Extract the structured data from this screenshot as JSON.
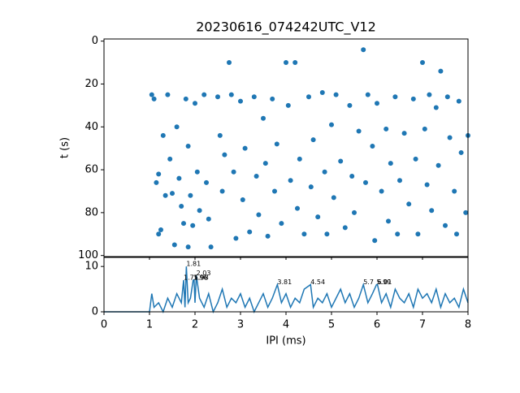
{
  "chart_data": [
    {
      "type": "scatter",
      "title": "20230616_074242UTC_V12",
      "ylabel": "t (s)",
      "color": "#1f77b4",
      "x": [
        1.05,
        1.1,
        1.2,
        1.15,
        1.3,
        1.35,
        1.25,
        1.2,
        1.4,
        1.45,
        1.5,
        1.55,
        1.6,
        1.65,
        1.7,
        1.75,
        1.8,
        1.85,
        1.9,
        1.95,
        2.0,
        2.05,
        2.1,
        1.85,
        2.2,
        2.25,
        2.3,
        2.35,
        2.5,
        2.55,
        2.6,
        2.65,
        2.75,
        2.8,
        2.85,
        2.9,
        3.0,
        3.05,
        3.1,
        3.2,
        3.3,
        3.35,
        3.4,
        3.5,
        3.55,
        3.6,
        3.7,
        3.75,
        3.8,
        3.9,
        4.0,
        4.05,
        4.1,
        4.2,
        4.25,
        4.3,
        4.4,
        4.5,
        4.55,
        4.6,
        4.7,
        4.8,
        4.85,
        4.9,
        5.0,
        5.05,
        5.1,
        5.2,
        5.3,
        5.4,
        5.45,
        5.5,
        5.6,
        5.7,
        5.75,
        5.8,
        5.9,
        5.95,
        6.0,
        6.1,
        6.2,
        6.25,
        6.3,
        6.4,
        6.45,
        6.5,
        6.6,
        6.7,
        6.8,
        6.85,
        6.9,
        7.0,
        7.05,
        7.1,
        7.15,
        7.2,
        7.3,
        7.35,
        7.4,
        7.5,
        7.55,
        7.6,
        7.7,
        7.75,
        7.8,
        7.85,
        7.95,
        8.0
      ],
      "y": [
        25,
        27,
        62,
        66,
        44,
        72,
        88,
        90,
        25,
        55,
        71,
        95,
        40,
        64,
        77,
        85,
        27,
        49,
        72,
        86,
        29,
        61,
        79,
        96,
        25,
        66,
        83,
        96,
        26,
        44,
        70,
        53,
        10,
        25,
        61,
        92,
        28,
        74,
        50,
        89,
        26,
        63,
        81,
        36,
        57,
        91,
        27,
        70,
        48,
        85,
        10,
        30,
        65,
        10,
        78,
        55,
        90,
        26,
        68,
        46,
        82,
        24,
        61,
        90,
        39,
        73,
        25,
        56,
        87,
        30,
        63,
        80,
        42,
        4,
        66,
        25,
        49,
        93,
        29,
        70,
        41,
        84,
        57,
        26,
        90,
        65,
        43,
        76,
        27,
        55,
        90,
        10,
        41,
        67,
        25,
        79,
        31,
        58,
        14,
        86,
        26,
        45,
        70,
        90,
        28,
        52,
        80,
        44
      ],
      "xlim": [
        0,
        8
      ],
      "xticks": [
        0,
        1,
        2,
        3,
        4,
        5,
        6,
        7,
        8
      ],
      "ylim": [
        -1,
        100.5
      ],
      "yticks": [
        0,
        20,
        40,
        60,
        80,
        100
      ],
      "y_inverted": true
    },
    {
      "type": "line",
      "xlabel": "IPI (ms)",
      "color": "#1f77b4",
      "x": [
        0,
        1.0,
        1.05,
        1.1,
        1.2,
        1.3,
        1.4,
        1.5,
        1.6,
        1.7,
        1.75,
        1.78,
        1.81,
        1.85,
        1.9,
        1.96,
        1.98,
        2.0,
        2.03,
        2.1,
        2.2,
        2.3,
        2.4,
        2.5,
        2.6,
        2.7,
        2.8,
        2.9,
        3.0,
        3.1,
        3.2,
        3.3,
        3.4,
        3.5,
        3.6,
        3.7,
        3.81,
        3.9,
        4.0,
        4.1,
        4.2,
        4.3,
        4.4,
        4.54,
        4.6,
        4.7,
        4.8,
        4.9,
        5.0,
        5.1,
        5.2,
        5.3,
        5.4,
        5.5,
        5.6,
        5.7,
        5.8,
        5.9,
        5.99,
        6.01,
        6.1,
        6.2,
        6.3,
        6.4,
        6.5,
        6.6,
        6.7,
        6.8,
        6.9,
        7.0,
        7.1,
        7.2,
        7.3,
        7.4,
        7.5,
        7.6,
        7.7,
        7.8,
        7.9,
        8.0
      ],
      "values": [
        0,
        0,
        4,
        1,
        2,
        0,
        3,
        1,
        4,
        2,
        7,
        1,
        10,
        2,
        3,
        7,
        7,
        2,
        8,
        3,
        1,
        4,
        0,
        2,
        5,
        1,
        3,
        2,
        4,
        1,
        3,
        0,
        2,
        4,
        1,
        3,
        6,
        2,
        4,
        1,
        3,
        2,
        5,
        6,
        1,
        3,
        2,
        4,
        1,
        3,
        5,
        2,
        4,
        1,
        3,
        6,
        2,
        4,
        6,
        6,
        2,
        4,
        1,
        5,
        3,
        2,
        4,
        1,
        5,
        3,
        4,
        2,
        5,
        1,
        4,
        2,
        3,
        1,
        5,
        2
      ],
      "annotations": [
        {
          "x": 1.81,
          "y": 10,
          "text": "1.81"
        },
        {
          "x": 1.75,
          "y": 7,
          "text": "1.75"
        },
        {
          "x": 1.96,
          "y": 7,
          "text": "1.96"
        },
        {
          "x": 1.98,
          "y": 7,
          "text": "1.98"
        },
        {
          "x": 2.03,
          "y": 8,
          "text": "2.03"
        },
        {
          "x": 3.81,
          "y": 6,
          "text": "3.81"
        },
        {
          "x": 4.54,
          "y": 6,
          "text": "4.54"
        },
        {
          "x": 5.7,
          "y": 6,
          "text": "5.7"
        },
        {
          "x": 5.99,
          "y": 6,
          "text": "5.99"
        },
        {
          "x": 6.01,
          "y": 6,
          "text": "6.01"
        }
      ],
      "xlim": [
        0,
        8
      ],
      "xticks": [
        0,
        1,
        2,
        3,
        4,
        5,
        6,
        7,
        8
      ],
      "ylim": [
        0,
        12
      ],
      "yticks": [
        0,
        10
      ]
    }
  ]
}
